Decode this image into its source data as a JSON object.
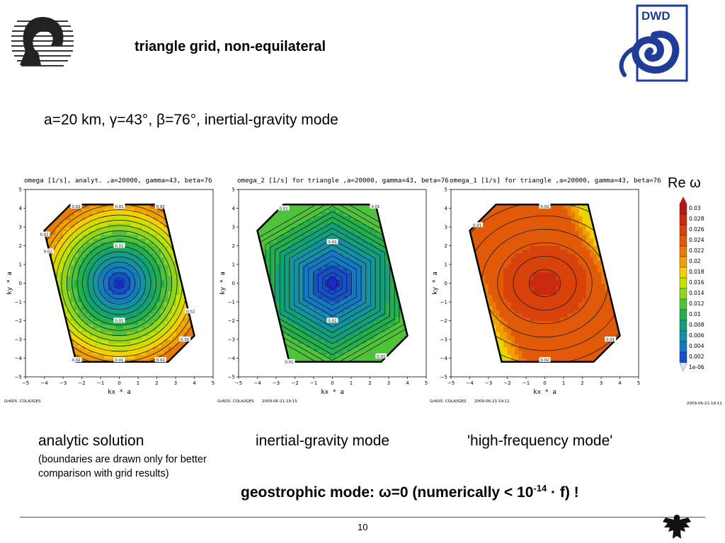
{
  "slide": {
    "title": "triangle grid, non-equilateral",
    "subtitle": "a=20 km, γ=43°, β=76°, inertial-gravity mode",
    "page_number": "10",
    "colorbar_title": "Re ω"
  },
  "captions": {
    "left": "analytic solution",
    "middle": "inertial-gravity mode",
    "right": "'high-frequency mode'",
    "left_note": "(boundaries are drawn only for better comparison with grid results)",
    "geostrophic_pre": "geostrophic mode: ",
    "geostrophic_omega": "ω",
    "geostrophic_mid": "=0  (numerically < 10",
    "geostrophic_exp": "-14",
    "geostrophic_post": " · f)  !"
  },
  "colors": {
    "dwd_blue": "#1f3c99",
    "logo_gray": "#333333"
  },
  "chart_data": [
    {
      "type": "heatmap",
      "title": "omega [1/s], analyt. ,a=20000, gamma=43, beta=76",
      "xlabel": "kx * a",
      "ylabel": "ky * a",
      "xlim": [
        -5,
        5
      ],
      "ylim": [
        -5,
        5
      ],
      "xticks": [
        -5,
        -4,
        -3,
        -2,
        -1,
        0,
        1,
        2,
        3,
        4,
        5
      ],
      "yticks": [
        -5,
        -4,
        -3,
        -2,
        -1,
        0,
        1,
        2,
        3,
        4,
        5
      ],
      "field": "radial",
      "center_value": 0.001,
      "edge_value": 0.022,
      "contour_labels": [
        {
          "text": "0.02",
          "x": -2.3,
          "y": 4.1
        },
        {
          "text": "0.01",
          "x": 0,
          "y": 4.1
        },
        {
          "text": "0.02",
          "x": 2.2,
          "y": 4.1
        },
        {
          "text": "0.01",
          "x": 0,
          "y": 2.0
        },
        {
          "text": "0.02",
          "x": -3.8,
          "y": 1.7
        },
        {
          "text": "0.02",
          "x": -4.0,
          "y": 2.6
        },
        {
          "text": "0.01",
          "x": 0,
          "y": -2.0
        },
        {
          "text": "0.02",
          "x": 3.8,
          "y": -1.5
        },
        {
          "text": "0.01",
          "x": 3.5,
          "y": -3.0
        },
        {
          "text": "0.02",
          "x": -2.3,
          "y": -4.1
        },
        {
          "text": "0.01",
          "x": 0,
          "y": -4.1
        },
        {
          "text": "0.02",
          "x": 2.2,
          "y": -4.1
        }
      ],
      "footer_left": "GrADS: COLA/IGES",
      "footer_right": ""
    },
    {
      "type": "heatmap",
      "title": "omega_2 [1/s] for triangle ,a=20000, gamma=43, beta=76",
      "xlabel": "kx * a",
      "ylabel": "ky * a",
      "xlim": [
        -5,
        5
      ],
      "ylim": [
        -5,
        5
      ],
      "xticks": [
        -5,
        -4,
        -3,
        -2,
        -1,
        0,
        1,
        2,
        3,
        4,
        5
      ],
      "yticks": [
        -5,
        -4,
        -3,
        -2,
        -1,
        0,
        1,
        2,
        3,
        4,
        5
      ],
      "field": "hex",
      "center_value": 0.001,
      "edge_value": 0.012,
      "contour_labels": [
        {
          "text": "0.01",
          "x": -2.6,
          "y": 4.0
        },
        {
          "text": "0.01",
          "x": 2.3,
          "y": 4.1
        },
        {
          "text": "0.01",
          "x": 0,
          "y": 2.2
        },
        {
          "text": "0.01",
          "x": 0,
          "y": -2.0
        },
        {
          "text": "0.01",
          "x": 2.6,
          "y": -3.9
        },
        {
          "text": "0.01",
          "x": -2.3,
          "y": -4.2
        }
      ],
      "footer_left": "GrADS: COLA/IGES",
      "footer_right": "2009-06-21-19:15"
    },
    {
      "type": "heatmap",
      "title": "omega_1 [1/s] for triangle ,a=20000, gamma=43, beta=76",
      "xlabel": "kx * a",
      "ylabel": "ky * a",
      "xlim": [
        -5,
        5
      ],
      "ylim": [
        -5,
        5
      ],
      "xticks": [
        -5,
        -4,
        -3,
        -2,
        -1,
        0,
        1,
        2,
        3,
        4,
        5
      ],
      "yticks": [
        -5,
        -4,
        -3,
        -2,
        -1,
        0,
        1,
        2,
        3,
        4,
        5
      ],
      "field": "high",
      "center_value": 0.029,
      "edge_value": 0.022,
      "contour_labels": [
        {
          "text": "0.02",
          "x": 0,
          "y": 4.1
        },
        {
          "text": "0.01",
          "x": -3.6,
          "y": 3.1
        },
        {
          "text": "0.01",
          "x": 3.5,
          "y": -3.0
        },
        {
          "text": "0.02",
          "x": 0,
          "y": -4.1
        }
      ],
      "footer_left": "GrADS: COLA/IGES",
      "footer_right": "2009-06-21-19:11"
    },
    {
      "type": "colorbar",
      "title": "Re ω",
      "labels": [
        "0.03",
        "0.028",
        "0.026",
        "0.024",
        "0.022",
        "0.02",
        "0.018",
        "0.016",
        "0.014",
        "0.012",
        "0.01",
        "0.008",
        "0.006",
        "0.004",
        "0.002",
        "1e-06"
      ],
      "colors": [
        "#b51a12",
        "#c92a10",
        "#d8420b",
        "#e15a09",
        "#e87a06",
        "#f0a000",
        "#f5d000",
        "#c8e000",
        "#8fd61c",
        "#4ec23a",
        "#22b04f",
        "#12a07a",
        "#1591a6",
        "#1479c3",
        "#1551c4",
        "#1a2ac8"
      ],
      "footer_right": "2009-06-21-19:11"
    }
  ]
}
